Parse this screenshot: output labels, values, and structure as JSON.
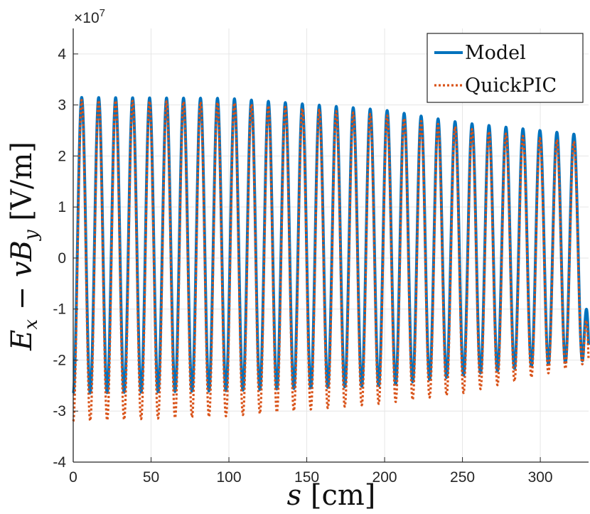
{
  "chart_data": {
    "type": "line",
    "xlabel": "s [cm]",
    "ylabel": "E_x − v B_y [V/m]",
    "xlim": [
      0,
      331
    ],
    "ylim": [
      -4,
      4.5
    ],
    "y_multiplier": "×10^7",
    "x_ticks": [
      0,
      50,
      100,
      150,
      200,
      250,
      300
    ],
    "y_ticks": [
      -4,
      -3,
      -2,
      -1,
      0,
      1,
      2,
      3,
      4
    ],
    "grid": true,
    "legend_position": "top-right",
    "colors": {
      "Model": "#0072BD",
      "QuickPIC": "#D95319"
    },
    "series": [
      {
        "name": "Model",
        "style": "solid",
        "period": 10.9,
        "peaks": [
          [
            0,
            3.15
          ],
          [
            100,
            3.13
          ],
          [
            200,
            2.9
          ],
          [
            250,
            2.65
          ],
          [
            300,
            2.5
          ],
          [
            331,
            2.4
          ]
        ],
        "troughs": [
          [
            0,
            -2.65
          ],
          [
            100,
            -2.6
          ],
          [
            200,
            -2.5
          ],
          [
            250,
            -2.3
          ],
          [
            300,
            -2.1
          ],
          [
            331,
            -2.0
          ]
        ],
        "end_value": -1.7
      },
      {
        "name": "QuickPIC",
        "style": "dotted",
        "period": 10.9,
        "peaks": [
          [
            0,
            3.1
          ],
          [
            100,
            3.05
          ],
          [
            200,
            2.8
          ],
          [
            250,
            2.55
          ],
          [
            300,
            2.35
          ],
          [
            331,
            2.25
          ]
        ],
        "troughs": [
          [
            0,
            -3.2
          ],
          [
            100,
            -3.1
          ],
          [
            200,
            -2.85
          ],
          [
            250,
            -2.65
          ],
          [
            300,
            -2.3
          ],
          [
            331,
            -2.05
          ]
        ],
        "end_value": -2.0
      }
    ]
  }
}
